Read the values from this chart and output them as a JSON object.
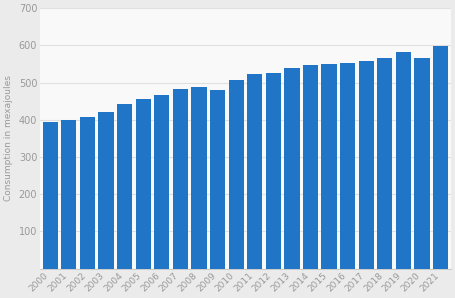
{
  "years": [
    "2000",
    "2001",
    "2002",
    "2003",
    "2004",
    "2005",
    "2006",
    "2007",
    "2008",
    "2009",
    "2010",
    "2011",
    "2012",
    "2013",
    "2014",
    "2015",
    "2016",
    "2017",
    "2018",
    "2019",
    "2020",
    "2021"
  ],
  "values": [
    393,
    400,
    407,
    421,
    441,
    455,
    467,
    482,
    488,
    481,
    506,
    522,
    527,
    538,
    548,
    550,
    553,
    558,
    567,
    583,
    565,
    598
  ],
  "bar_color": "#2175c7",
  "ylabel": "Consumption in mexajoules",
  "ylim": [
    0,
    700
  ],
  "yticks": [
    0,
    100,
    200,
    300,
    400,
    500,
    600,
    700
  ],
  "bg_color": "#ebebeb",
  "plot_bg_color": "#f9f9f9",
  "grid_color": "#e0e0e0",
  "tick_label_color": "#999999",
  "axis_label_color": "#999999",
  "figsize": [
    4.55,
    2.98
  ],
  "dpi": 100
}
